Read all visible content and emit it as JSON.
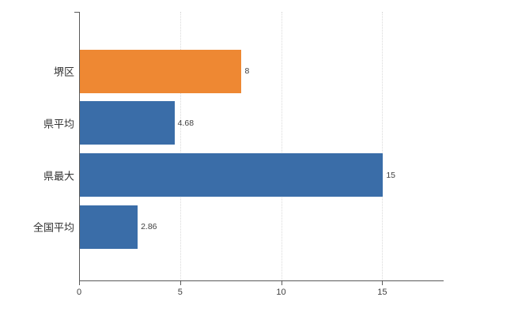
{
  "chart_data": {
    "type": "bar",
    "orientation": "horizontal",
    "title": "",
    "xlabel": "",
    "ylabel": "",
    "categories": [
      "堺区",
      "県平均",
      "県最大",
      "全国平均"
    ],
    "values": [
      8,
      4.68,
      15,
      2.86
    ],
    "value_labels": [
      "8",
      "4.68",
      "15",
      "2.86"
    ],
    "bar_colors": [
      "#EE8833",
      "#3A6DA8",
      "#3A6DA8",
      "#3A6DA8"
    ],
    "xlim": [
      0,
      18
    ],
    "x_ticks": [
      0,
      5,
      10,
      15
    ],
    "x_tick_labels": [
      "0",
      "5",
      "10",
      "15"
    ],
    "grid": "vertical-dotted",
    "legend": "none"
  },
  "colors": {
    "highlight_bar": "#EE8833",
    "default_bar": "#3A6DA8",
    "axis": "#595959",
    "gridline": "#D9D9D9",
    "label_text": "#333333",
    "background": "#FFFFFF"
  }
}
